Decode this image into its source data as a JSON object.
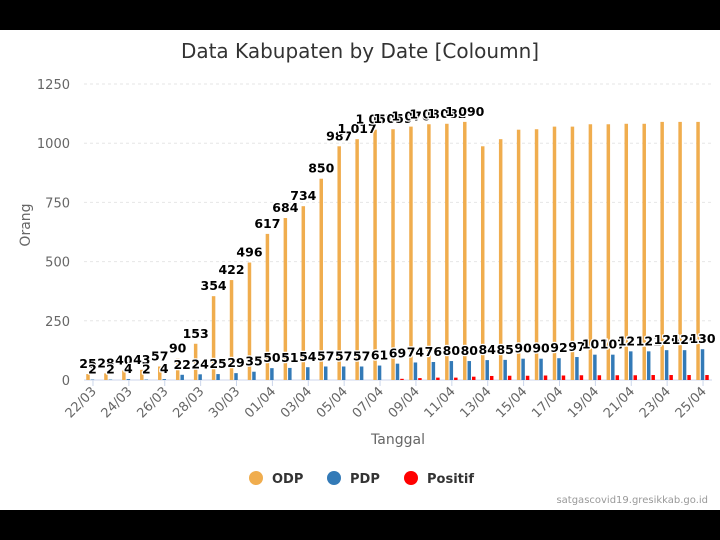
{
  "chart_data": {
    "type": "bar",
    "title": "Data Kabupaten by Date [Coloumn]",
    "xlabel": "Tanggal",
    "ylabel": "Orang",
    "ylim": [
      0,
      1250
    ],
    "yticks": [
      0,
      250,
      500,
      750,
      1000,
      1250
    ],
    "categories": [
      "22/03",
      "23/03",
      "24/03",
      "25/03",
      "26/03",
      "27/03",
      "28/03",
      "29/03",
      "30/03",
      "31/03",
      "01/04",
      "02/04",
      "03/04",
      "04/04",
      "05/04",
      "06/04",
      "07/04",
      "08/04",
      "09/04",
      "10/04",
      "11/04",
      "12/04",
      "13/04",
      "14/04",
      "15/04",
      "16/04",
      "17/04",
      "18/04",
      "19/04",
      "20/04",
      "21/04",
      "22/04",
      "23/04",
      "24/04",
      "25/04"
    ],
    "x_tick_labels": [
      "22/03",
      "24/03",
      "26/03",
      "28/03",
      "30/03",
      "01/04",
      "03/04",
      "05/04",
      "07/04",
      "09/04",
      "11/04",
      "13/04",
      "15/04",
      "17/04",
      "19/04",
      "21/04",
      "23/04",
      "25/04"
    ],
    "series": [
      {
        "name": "ODP",
        "color": "#f0ad4e",
        "values": [
          25,
          28,
          40,
          43,
          57,
          90,
          153,
          354,
          422,
          496,
          617,
          684,
          734,
          850,
          987,
          1017,
          1057,
          1059,
          1070,
          1080,
          1082,
          1090,
          987,
          1017,
          1057,
          1059,
          1070,
          1070,
          1080,
          1080,
          1082,
          1082,
          1090,
          1090,
          1090
        ]
      },
      {
        "name": "PDP",
        "color": "#337ab7",
        "values": [
          2,
          2,
          4,
          2,
          4,
          22,
          24,
          25,
          29,
          35,
          50,
          51,
          54,
          57,
          57,
          57,
          61,
          69,
          74,
          76,
          80,
          80,
          84,
          85,
          90,
          90,
          92,
          97,
          107,
          107,
          121,
          121,
          126,
          126,
          130
        ]
      },
      {
        "name": "Positif",
        "color": "#ff0000",
        "values": [
          0,
          0,
          0,
          0,
          0,
          0,
          0,
          0,
          0,
          0,
          0,
          0,
          0,
          0,
          0,
          0,
          0,
          5,
          8,
          10,
          10,
          14,
          17,
          18,
          18,
          19,
          19,
          20,
          20,
          20,
          20,
          21,
          21,
          21,
          21
        ]
      }
    ],
    "legend_position": "bottom",
    "grid": true
  },
  "credit": "satgascovid19.gresikkab.go.id"
}
